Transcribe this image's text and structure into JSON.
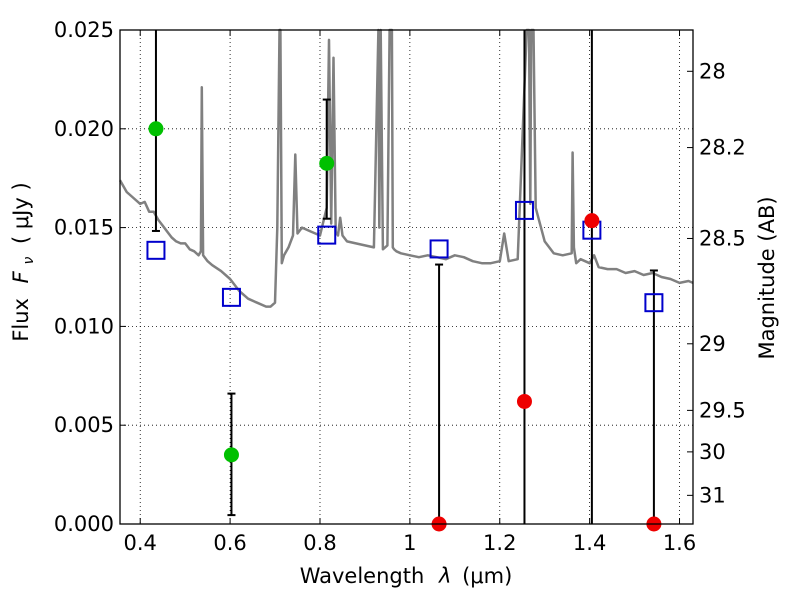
{
  "chart_data": {
    "type": "scatter",
    "xlabel_prefix": "Wavelength",
    "xlabel_symbol": "λ",
    "xlabel_unit": "(μm)",
    "ylabel_prefix": "Flux",
    "ylabel_symbol": "F",
    "ylabel_subscript": "ν",
    "ylabel_unit": "( μJy )",
    "y2label": "Magnitude (AB)",
    "xlim": [
      0.355,
      1.63
    ],
    "ylim": [
      0.0,
      0.025
    ],
    "grid": true,
    "x_ticks": [
      {
        "value": 0.4,
        "label": "0.4"
      },
      {
        "value": 0.6,
        "label": "0.6"
      },
      {
        "value": 0.8,
        "label": "0.8"
      },
      {
        "value": 1.0,
        "label": "1"
      },
      {
        "value": 1.2,
        "label": "1.2"
      },
      {
        "value": 1.4,
        "label": "1.4"
      },
      {
        "value": 1.6,
        "label": "1.6"
      }
    ],
    "y_ticks": [
      {
        "value": 0.0,
        "label": "0.000"
      },
      {
        "value": 0.005,
        "label": "0.005"
      },
      {
        "value": 0.01,
        "label": "0.010"
      },
      {
        "value": 0.015,
        "label": "0.015"
      },
      {
        "value": 0.02,
        "label": "0.020"
      },
      {
        "value": 0.025,
        "label": "0.025"
      }
    ],
    "y2_ticks": [
      {
        "flux": 0.02291,
        "label": "28"
      },
      {
        "flux": 0.01905,
        "label": "28.2"
      },
      {
        "flux": 0.01445,
        "label": "28.5"
      },
      {
        "flux": 0.00912,
        "label": "29"
      },
      {
        "flux": 0.00575,
        "label": "29.5"
      },
      {
        "flux": 0.00365,
        "label": "30"
      },
      {
        "flux": 0.00145,
        "label": "31"
      }
    ],
    "colors": {
      "spectrum": "#808080",
      "model_box": "#0000cc",
      "detection": "#00c000",
      "nondetection": "#ee0000",
      "errorbar": "#000000"
    },
    "spectrum": {
      "name": "",
      "x": [
        0.355,
        0.37,
        0.385,
        0.4,
        0.41,
        0.42,
        0.43,
        0.44,
        0.45,
        0.46,
        0.47,
        0.48,
        0.49,
        0.5,
        0.51,
        0.52,
        0.53,
        0.535,
        0.537,
        0.54,
        0.55,
        0.56,
        0.58,
        0.6,
        0.62,
        0.64,
        0.66,
        0.68,
        0.69,
        0.7,
        0.705,
        0.71,
        0.712,
        0.715,
        0.72,
        0.73,
        0.74,
        0.745,
        0.75,
        0.76,
        0.78,
        0.8,
        0.815,
        0.82,
        0.825,
        0.83,
        0.835,
        0.84,
        0.845,
        0.85,
        0.86,
        0.88,
        0.9,
        0.92,
        0.93,
        0.932,
        0.935,
        0.94,
        0.95,
        0.955,
        0.96,
        0.962,
        0.965,
        0.97,
        0.98,
        1.0,
        1.02,
        1.04,
        1.06,
        1.08,
        1.1,
        1.12,
        1.14,
        1.16,
        1.18,
        1.2,
        1.21,
        1.22,
        1.24,
        1.26,
        1.265,
        1.268,
        1.27,
        1.275,
        1.28,
        1.3,
        1.32,
        1.34,
        1.36,
        1.362,
        1.365,
        1.37,
        1.38,
        1.4,
        1.41,
        1.42,
        1.44,
        1.46,
        1.48,
        1.5,
        1.52,
        1.54,
        1.56,
        1.58,
        1.6,
        1.62,
        1.63
      ],
      "y": [
        0.0174,
        0.0168,
        0.0165,
        0.0162,
        0.0163,
        0.0158,
        0.0158,
        0.0154,
        0.0151,
        0.0148,
        0.0145,
        0.0143,
        0.0142,
        0.0142,
        0.0139,
        0.0138,
        0.0136,
        0.0138,
        0.0221,
        0.0136,
        0.0133,
        0.0131,
        0.0128,
        0.0124,
        0.0118,
        0.0114,
        0.0112,
        0.011,
        0.011,
        0.0112,
        0.015,
        0.025,
        0.025,
        0.0132,
        0.0136,
        0.014,
        0.0146,
        0.0187,
        0.0147,
        0.015,
        0.0148,
        0.0146,
        0.016,
        0.0245,
        0.0152,
        0.0236,
        0.0148,
        0.0146,
        0.0155,
        0.0146,
        0.0143,
        0.0142,
        0.0141,
        0.014,
        0.025,
        0.015,
        0.025,
        0.0139,
        0.0141,
        0.025,
        0.025,
        0.014,
        0.0139,
        0.0138,
        0.0137,
        0.0136,
        0.0135,
        0.0136,
        0.0135,
        0.0134,
        0.0136,
        0.0135,
        0.0133,
        0.0132,
        0.0132,
        0.0133,
        0.0147,
        0.0133,
        0.0134,
        0.025,
        0.025,
        0.0162,
        0.025,
        0.025,
        0.016,
        0.0143,
        0.0137,
        0.0136,
        0.0137,
        0.0188,
        0.014,
        0.0132,
        0.0134,
        0.0132,
        0.0136,
        0.013,
        0.0129,
        0.0129,
        0.0127,
        0.0128,
        0.0126,
        0.0127,
        0.0125,
        0.0124,
        0.0122,
        0.0123,
        0.0122
      ]
    },
    "model_points": {
      "name": "",
      "x": [
        0.435,
        0.603,
        0.815,
        1.065,
        1.255,
        1.405,
        1.543
      ],
      "y": [
        0.01385,
        0.01147,
        0.01462,
        0.01392,
        0.01587,
        0.01487,
        0.0112
      ]
    },
    "detections": {
      "name": "",
      "x": [
        0.435,
        0.603,
        0.815
      ],
      "y": [
        0.02,
        0.0035,
        0.01825
      ],
      "err_low": [
        0.01483,
        0.00045,
        0.01545
      ],
      "err_high": [
        0.025,
        0.0066,
        0.02148
      ]
    },
    "nondetections": {
      "name": "",
      "x": [
        1.065,
        1.255,
        1.405,
        1.543
      ],
      "y": [
        0.0,
        0.0062,
        0.01535,
        0.0
      ],
      "err_low": [
        0.0,
        0.0,
        0.0,
        0.0
      ],
      "err_high": [
        0.01313,
        0.025,
        0.025,
        0.01283
      ]
    }
  }
}
